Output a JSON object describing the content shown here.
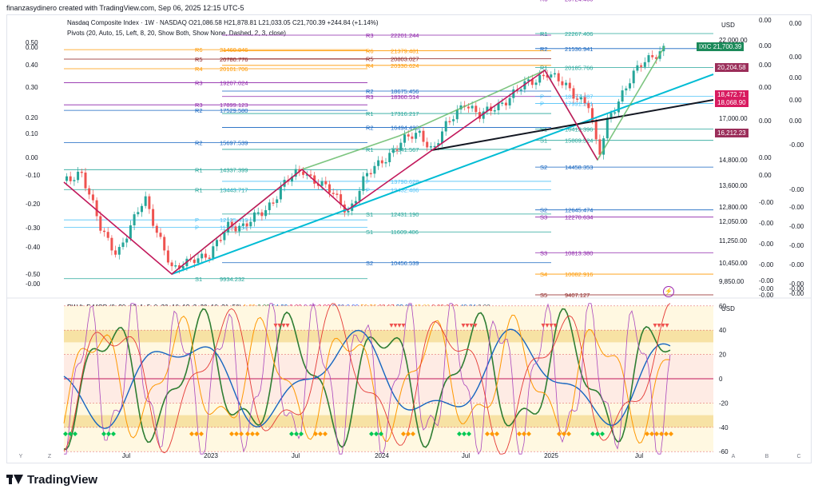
{
  "header": {
    "text": "finanzasydinero created with TradingView.com, Sep 06, 2025 12:15 UTC-5"
  },
  "legend": {
    "line1": "Nasdaq Composite Index · 1W · NASDAQ  O21,086.58  H21,878.81  L21,033.05  C21,700.39  +244.84 (+1.14%)",
    "line2": "Pivots (20, Auto, 15, Left, 8, 20, Show Both, Show None, Dashed, 2, 3, close)",
    "indicator": "RW ft. F-MOD (0, 20, 10, 1, 5, 0, 20, 10, 12, 2, 20, 10, 21, 50)",
    "indicator_values": [
      {
        "text": "1.00",
        "color": "#ff9800"
      },
      {
        "text": "0.00",
        "color": "#2e7d32"
      },
      {
        "text": "54.22",
        "color": "#1565c0"
      },
      {
        "text": "0.00",
        "color": "#d81b60"
      },
      {
        "text": "0.00",
        "color": "#9c27b0"
      },
      {
        "text": "0.00",
        "color": "#e91e63"
      },
      {
        "text": "0.00",
        "color": "#3f51b5"
      },
      {
        "text": "0.00",
        "color": "#2962ff"
      },
      {
        "text": "50.36",
        "color": "#ff9800"
      },
      {
        "text": "68.17",
        "color": "#e53935"
      },
      {
        "text": "32.07",
        "color": "#1565c0"
      },
      {
        "text": "43.66",
        "color": "#fbc02d"
      },
      {
        "text": "0.00",
        "color": "#e53935"
      },
      {
        "text": "0.00",
        "color": "#e53935"
      },
      {
        "text": "40.84",
        "color": "#1565c0"
      },
      {
        "text": "0.00",
        "color": "#455a64"
      }
    ]
  },
  "price_axis": {
    "currency": "USD",
    "ticks": [
      "22,000.00",
      "17,000.00",
      "14,800.00",
      "13,600.00",
      "12,800.00",
      "12,050.00",
      "11,250.00",
      "10,450.00",
      "9,850.00"
    ],
    "badges": [
      {
        "label": "IXIC",
        "value": "21,700.39",
        "color": "#1b8a5a"
      },
      {
        "label": "",
        "value": "20,204.58",
        "color": "#9b2e5a"
      },
      {
        "label": "",
        "value": "18,472.71",
        "color": "#d81b60"
      },
      {
        "label": "",
        "value": "18,068.90",
        "color": "#d81b60"
      },
      {
        "label": "",
        "value": "16,212.23",
        "color": "#9b2e5a"
      }
    ],
    "right_col_a": [
      "0.00",
      "0.00",
      "0.00",
      "0.00",
      "0.00",
      "0.00",
      "0.00",
      "-0.00",
      "-0.00",
      "-0.00",
      "-0.00",
      "-0.00",
      "-0.00",
      "-0.00"
    ],
    "right_col_b": [
      "0.00",
      "0.00",
      "0.00",
      "0.00",
      "0.00",
      "-0.00",
      "-0.00",
      "-0.00",
      "-0.00",
      "-0.00",
      "-0.00",
      "-0.00",
      "-0.00",
      "-0.00"
    ]
  },
  "left_scale": [
    "0.50",
    "0.00",
    "0.40",
    "0.30",
    "0.20",
    "0.10",
    "0.00",
    "-0.10",
    "-0.20",
    "-0.30",
    "-0.40",
    "-0.50",
    "-0.00"
  ],
  "pivots": [
    {
      "lvl": "R6",
      "val": "21460.846",
      "color": "#ff9800"
    },
    {
      "lvl": "R5",
      "val": "20780.776",
      "color": "#8b1a1a"
    },
    {
      "lvl": "R4",
      "val": "20101.706",
      "color": "#ff9800"
    },
    {
      "lvl": "R3",
      "val": "19207.024",
      "color": "#8e24aa"
    },
    {
      "lvl": "R3",
      "val": "17899.123",
      "color": "#8e24aa"
    },
    {
      "lvl": "R2",
      "val": "17529.580",
      "color": "#1565c0"
    },
    {
      "lvl": "R2",
      "val": "15697.539",
      "color": "#1565c0"
    },
    {
      "lvl": "R1",
      "val": "14337.399",
      "color": "#26a69a"
    },
    {
      "lvl": "R1",
      "val": "13443.717",
      "color": "#26a69a"
    },
    {
      "lvl": "P",
      "val": "12125.419",
      "color": "#4fc3f7"
    },
    {
      "lvl": "P",
      "val": "11796.154",
      "color": "#4fc3f7"
    },
    {
      "lvl": "S1",
      "val": "9934.232",
      "color": "#26a69a"
    },
    {
      "lvl": "R3",
      "val": "22201.244",
      "color": "#8e24aa"
    },
    {
      "lvl": "R6",
      "val": "21379.481",
      "color": "#ff9800"
    },
    {
      "lvl": "R5",
      "val": "20803.027",
      "color": "#8b1a1a"
    },
    {
      "lvl": "R4",
      "val": "20330.624",
      "color": "#ff9800"
    },
    {
      "lvl": "R2",
      "val": "18675.456",
      "color": "#1565c0"
    },
    {
      "lvl": "R3",
      "val": "18360.514",
      "color": "#8e24aa"
    },
    {
      "lvl": "R1",
      "val": "17316.217",
      "color": "#26a69a"
    },
    {
      "lvl": "R2",
      "val": "16494.423",
      "color": "#1565c0"
    },
    {
      "lvl": "R1",
      "val": "15341.567",
      "color": "#26a69a"
    },
    {
      "lvl": "P",
      "val": "13790.628",
      "color": "#4fc3f7"
    },
    {
      "lvl": "P",
      "val": "13432.486",
      "color": "#4fc3f7"
    },
    {
      "lvl": "S1",
      "val": "12431.190",
      "color": "#26a69a"
    },
    {
      "lvl": "S1",
      "val": "11609.406",
      "color": "#26a69a"
    },
    {
      "lvl": "S2",
      "val": "10456.539",
      "color": "#1565c0"
    },
    {
      "lvl": "R3",
      "val": "23724.460",
      "color": "#8e24aa"
    },
    {
      "lvl": "R1",
      "val": "22267.406",
      "color": "#26a69a"
    },
    {
      "lvl": "R2",
      "val": "21536.941",
      "color": "#1565c0"
    },
    {
      "lvl": "R1",
      "val": "20185.766",
      "color": "#26a69a"
    },
    {
      "lvl": "P",
      "val": "18377.487",
      "color": "#4fc3f7"
    },
    {
      "lvl": "P",
      "val": "17991.201",
      "color": "#4fc3f7"
    },
    {
      "lvl": "S1",
      "val": "16413.396",
      "color": "#26a69a"
    },
    {
      "lvl": "S1",
      "val": "15809.524",
      "color": "#26a69a"
    },
    {
      "lvl": "S2",
      "val": "14458.353",
      "color": "#1565c0"
    },
    {
      "lvl": "S2",
      "val": "12645.474",
      "color": "#1565c0"
    },
    {
      "lvl": "S3",
      "val": "12270.634",
      "color": "#8e24aa"
    },
    {
      "lvl": "S3",
      "val": "10813.380",
      "color": "#8e24aa"
    },
    {
      "lvl": "S4",
      "val": "10082.916",
      "color": "#ff9800"
    },
    {
      "lvl": "S5",
      "val": "9407.127",
      "color": "#8b1a1a"
    }
  ],
  "osc_axis": {
    "currency": "USD",
    "ticks": [
      "60",
      "40",
      "20",
      "0",
      "-20",
      "-40",
      "-60"
    ]
  },
  "time_axis": {
    "labels": [
      "Jul",
      "2023",
      "Jul",
      "2024",
      "Jul",
      "2025",
      "Jul"
    ]
  },
  "axis_buttons": {
    "left": [
      "Y",
      "Z"
    ],
    "right": [
      "A",
      "B",
      "C"
    ]
  },
  "footer": {
    "brand": "TradingView"
  },
  "colors": {
    "up": "#26a69a",
    "down": "#ef5350",
    "trend_cyan": "#00bcd4",
    "trend_black": "#131722",
    "trend_green": "#66bb6a",
    "zig_red": "#c2185b"
  }
}
